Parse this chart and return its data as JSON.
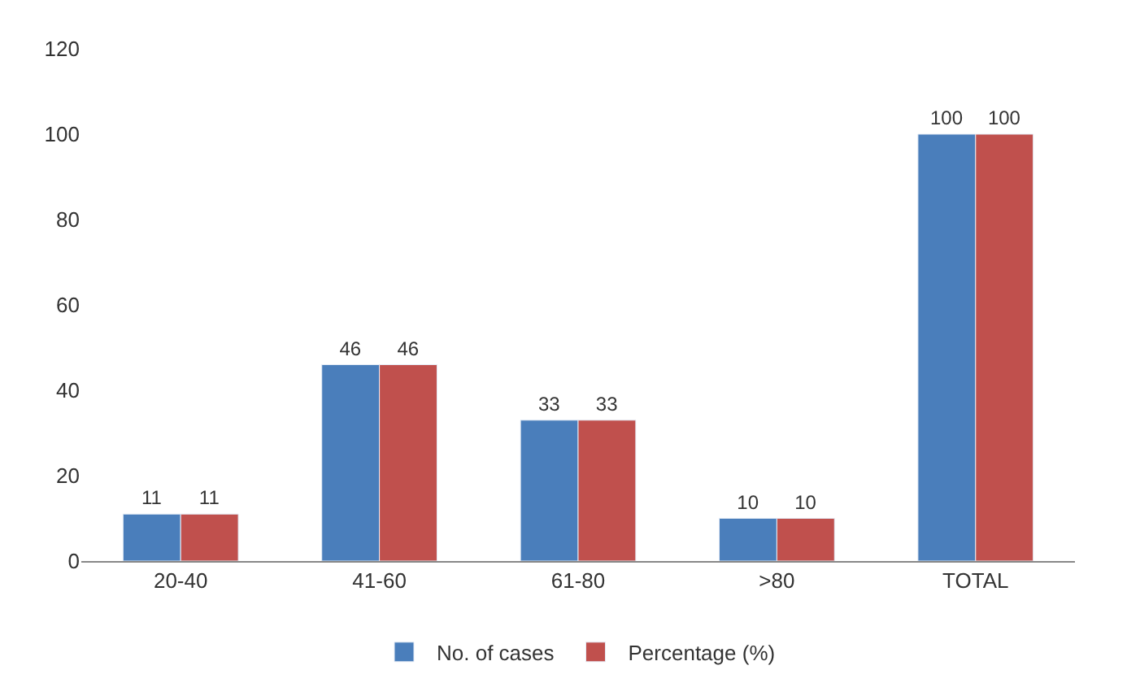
{
  "chart_data": {
    "type": "bar",
    "categories": [
      "20-40",
      "41-60",
      "61-80",
      ">80",
      "TOTAL"
    ],
    "series": [
      {
        "name": "No. of cases",
        "color": "#4a7ebb",
        "values": [
          11,
          46,
          33,
          10,
          100
        ]
      },
      {
        "name": "Percentage (%)",
        "color": "#c0504d",
        "values": [
          11,
          46,
          33,
          10,
          100
        ]
      }
    ],
    "ylim": [
      0,
      120
    ],
    "yticks": [
      0,
      20,
      40,
      60,
      80,
      100,
      120
    ],
    "grid": false,
    "legend": "bottom",
    "data_labels": true
  }
}
